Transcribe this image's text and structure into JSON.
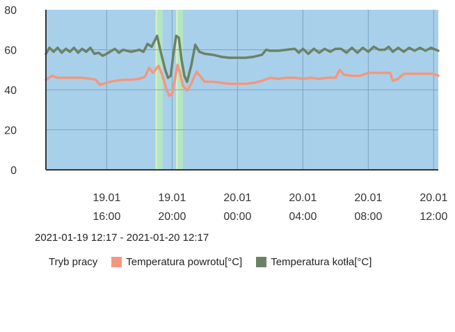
{
  "chart_data": {
    "type": "line",
    "x_range": [
      "2021-01-19 12:17",
      "2021-01-20 12:17"
    ],
    "ylim": [
      0,
      80
    ],
    "y_ticks": [
      0,
      20,
      40,
      60,
      80
    ],
    "x_ticks": [
      {
        "t": "2021-01-19 16:00",
        "date": "19.01",
        "time": "16:00"
      },
      {
        "t": "2021-01-19 20:00",
        "date": "19.01",
        "time": "20:00"
      },
      {
        "t": "2021-01-20 00:00",
        "date": "20.01",
        "time": "00:00"
      },
      {
        "t": "2021-01-20 04:00",
        "date": "20.01",
        "time": "04:00"
      },
      {
        "t": "2021-01-20 08:00",
        "date": "20.01",
        "time": "08:00"
      },
      {
        "t": "2021-01-20 12:00",
        "date": "20.01",
        "time": "12:00"
      }
    ],
    "grid": true,
    "legend_position": "bottom-left",
    "mode_band": {
      "name": "Tryb pracy",
      "segments": [
        {
          "start": "2021-01-19 12:17",
          "end": "2021-01-19 19:00",
          "color": "#a9d0ea"
        },
        {
          "start": "2021-01-19 19:00",
          "end": "2021-01-19 19:05",
          "color": "#d9f0b8"
        },
        {
          "start": "2021-01-19 19:05",
          "end": "2021-01-19 19:25",
          "color": "#b4e6c2"
        },
        {
          "start": "2021-01-19 19:25",
          "end": "2021-01-19 20:15",
          "color": "#a9d0ea"
        },
        {
          "start": "2021-01-19 20:15",
          "end": "2021-01-19 20:20",
          "color": "#d9f0b8"
        },
        {
          "start": "2021-01-19 20:20",
          "end": "2021-01-19 20:40",
          "color": "#b4e6c2"
        },
        {
          "start": "2021-01-19 20:40",
          "end": "2021-01-20 12:17",
          "color": "#a9d0ea"
        }
      ]
    },
    "series": [
      {
        "name": "Temperatura powrotu[°C]",
        "color": "#f4977f",
        "points": [
          [
            "2021-01-19 12:17",
            45
          ],
          [
            "2021-01-19 12:40",
            47
          ],
          [
            "2021-01-19 13:00",
            46
          ],
          [
            "2021-01-19 13:30",
            46
          ],
          [
            "2021-01-19 14:00",
            46
          ],
          [
            "2021-01-19 14:30",
            46
          ],
          [
            "2021-01-19 15:00",
            45.5
          ],
          [
            "2021-01-19 15:20",
            45
          ],
          [
            "2021-01-19 15:35",
            42.5
          ],
          [
            "2021-01-19 16:00",
            43.5
          ],
          [
            "2021-01-19 16:30",
            44.5
          ],
          [
            "2021-01-19 17:00",
            45
          ],
          [
            "2021-01-19 17:30",
            45
          ],
          [
            "2021-01-19 18:00",
            45.5
          ],
          [
            "2021-01-19 18:20",
            46.5
          ],
          [
            "2021-01-19 18:35",
            51
          ],
          [
            "2021-01-19 18:50",
            48.5
          ],
          [
            "2021-01-19 19:10",
            52
          ],
          [
            "2021-01-19 19:25",
            47
          ],
          [
            "2021-01-19 19:40",
            40
          ],
          [
            "2021-01-19 19:50",
            37
          ],
          [
            "2021-01-19 20:00",
            38
          ],
          [
            "2021-01-19 20:10",
            45
          ],
          [
            "2021-01-19 20:20",
            52.5
          ],
          [
            "2021-01-19 20:30",
            48
          ],
          [
            "2021-01-19 20:40",
            42
          ],
          [
            "2021-01-19 20:55",
            39.5
          ],
          [
            "2021-01-19 21:10",
            43
          ],
          [
            "2021-01-19 21:30",
            49
          ],
          [
            "2021-01-19 21:45",
            46.5
          ],
          [
            "2021-01-19 22:00",
            44
          ],
          [
            "2021-01-19 22:30",
            44
          ],
          [
            "2021-01-19 23:00",
            43.5
          ],
          [
            "2021-01-19 23:30",
            43
          ],
          [
            "2021-01-20 00:00",
            43
          ],
          [
            "2021-01-20 00:30",
            43
          ],
          [
            "2021-01-20 01:00",
            43.5
          ],
          [
            "2021-01-20 01:30",
            44.5
          ],
          [
            "2021-01-20 02:00",
            46
          ],
          [
            "2021-01-20 02:30",
            45.5
          ],
          [
            "2021-01-20 03:00",
            46
          ],
          [
            "2021-01-20 03:30",
            46
          ],
          [
            "2021-01-20 04:00",
            45.5
          ],
          [
            "2021-01-20 04:30",
            46
          ],
          [
            "2021-01-20 05:00",
            45.5
          ],
          [
            "2021-01-20 05:30",
            46
          ],
          [
            "2021-01-20 06:00",
            46
          ],
          [
            "2021-01-20 06:15",
            50
          ],
          [
            "2021-01-20 06:30",
            47.5
          ],
          [
            "2021-01-20 07:00",
            47
          ],
          [
            "2021-01-20 07:30",
            47
          ],
          [
            "2021-01-20 08:00",
            48.5
          ],
          [
            "2021-01-20 08:30",
            48.5
          ],
          [
            "2021-01-20 09:00",
            48.5
          ],
          [
            "2021-01-20 09:20",
            48.5
          ],
          [
            "2021-01-20 09:30",
            44.5
          ],
          [
            "2021-01-20 09:50",
            45.5
          ],
          [
            "2021-01-20 10:10",
            48
          ],
          [
            "2021-01-20 10:40",
            48
          ],
          [
            "2021-01-20 11:00",
            48
          ],
          [
            "2021-01-20 11:30",
            48
          ],
          [
            "2021-01-20 12:00",
            48
          ],
          [
            "2021-01-20 12:17",
            47
          ]
        ]
      },
      {
        "name": "Temperatura kotła[°C]",
        "color": "#6b8266",
        "points": [
          [
            "2021-01-19 12:17",
            58
          ],
          [
            "2021-01-19 12:30",
            61
          ],
          [
            "2021-01-19 12:45",
            59
          ],
          [
            "2021-01-19 13:00",
            61
          ],
          [
            "2021-01-19 13:15",
            58.5
          ],
          [
            "2021-01-19 13:30",
            60.5
          ],
          [
            "2021-01-19 13:45",
            59
          ],
          [
            "2021-01-19 14:00",
            61
          ],
          [
            "2021-01-19 14:15",
            58.5
          ],
          [
            "2021-01-19 14:30",
            60.5
          ],
          [
            "2021-01-19 14:45",
            59
          ],
          [
            "2021-01-19 15:00",
            61
          ],
          [
            "2021-01-19 15:15",
            58
          ],
          [
            "2021-01-19 15:30",
            58.5
          ],
          [
            "2021-01-19 15:45",
            57
          ],
          [
            "2021-01-19 16:00",
            58
          ],
          [
            "2021-01-19 16:30",
            60.5
          ],
          [
            "2021-01-19 16:45",
            58.5
          ],
          [
            "2021-01-19 17:00",
            60
          ],
          [
            "2021-01-19 17:30",
            59
          ],
          [
            "2021-01-19 18:00",
            60
          ],
          [
            "2021-01-19 18:15",
            59
          ],
          [
            "2021-01-19 18:30",
            63
          ],
          [
            "2021-01-19 18:45",
            61.5
          ],
          [
            "2021-01-19 19:05",
            67
          ],
          [
            "2021-01-19 19:20",
            58
          ],
          [
            "2021-01-19 19:35",
            50
          ],
          [
            "2021-01-19 19:45",
            46
          ],
          [
            "2021-01-19 19:55",
            47
          ],
          [
            "2021-01-19 20:05",
            58
          ],
          [
            "2021-01-19 20:15",
            67
          ],
          [
            "2021-01-19 20:25",
            66
          ],
          [
            "2021-01-19 20:35",
            55
          ],
          [
            "2021-01-19 20:45",
            47
          ],
          [
            "2021-01-19 20:55",
            44
          ],
          [
            "2021-01-19 21:10",
            52
          ],
          [
            "2021-01-19 21:25",
            62.5
          ],
          [
            "2021-01-19 21:40",
            59
          ],
          [
            "2021-01-19 22:00",
            58
          ],
          [
            "2021-01-19 22:30",
            57.5
          ],
          [
            "2021-01-19 23:00",
            56.5
          ],
          [
            "2021-01-19 23:30",
            56
          ],
          [
            "2021-01-20 00:00",
            56
          ],
          [
            "2021-01-20 00:30",
            56
          ],
          [
            "2021-01-20 01:00",
            56.5
          ],
          [
            "2021-01-20 01:30",
            57.5
          ],
          [
            "2021-01-20 01:45",
            60
          ],
          [
            "2021-01-20 02:00",
            59.5
          ],
          [
            "2021-01-20 02:30",
            59.5
          ],
          [
            "2021-01-20 03:00",
            60
          ],
          [
            "2021-01-20 03:30",
            60.5
          ],
          [
            "2021-01-20 03:45",
            58.5
          ],
          [
            "2021-01-20 04:00",
            60.5
          ],
          [
            "2021-01-20 04:20",
            58
          ],
          [
            "2021-01-20 04:40",
            60.5
          ],
          [
            "2021-01-20 05:00",
            58.5
          ],
          [
            "2021-01-20 05:20",
            60.5
          ],
          [
            "2021-01-20 05:40",
            59
          ],
          [
            "2021-01-20 06:00",
            60.5
          ],
          [
            "2021-01-20 06:20",
            60.5
          ],
          [
            "2021-01-20 06:40",
            58.5
          ],
          [
            "2021-01-20 07:00",
            61
          ],
          [
            "2021-01-20 07:20",
            58.5
          ],
          [
            "2021-01-20 07:40",
            61
          ],
          [
            "2021-01-20 08:00",
            59
          ],
          [
            "2021-01-20 08:20",
            61.5
          ],
          [
            "2021-01-20 08:40",
            60
          ],
          [
            "2021-01-20 09:00",
            60
          ],
          [
            "2021-01-20 09:15",
            61.5
          ],
          [
            "2021-01-20 09:30",
            59
          ],
          [
            "2021-01-20 09:50",
            61
          ],
          [
            "2021-01-20 10:10",
            59
          ],
          [
            "2021-01-20 10:30",
            61
          ],
          [
            "2021-01-20 10:50",
            59.5
          ],
          [
            "2021-01-20 11:10",
            61
          ],
          [
            "2021-01-20 11:30",
            59.5
          ],
          [
            "2021-01-20 11:50",
            61
          ],
          [
            "2021-01-20 12:17",
            59.5
          ]
        ]
      }
    ]
  },
  "footer": {
    "range_label": "2021-01-19 12:17 - 2021-01-20 12:17"
  },
  "legend": {
    "items": [
      {
        "label": "Tryb pracy",
        "color": ""
      },
      {
        "label": "Temperatura powrotu[°C]",
        "color": "#f4977f"
      },
      {
        "label": "Temperatura kotła[°C]",
        "color": "#6b8266"
      }
    ]
  }
}
